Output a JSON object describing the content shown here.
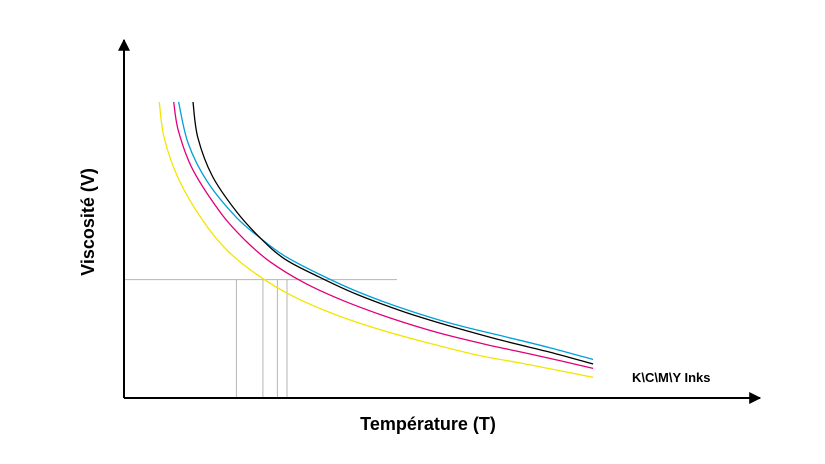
{
  "chart_data": {
    "type": "line",
    "xlabel": "Température (T)",
    "ylabel": "Viscosité (V)",
    "series_label": "K\\C\\M\\Y Inks",
    "grid": false,
    "xlim": [
      0,
      100
    ],
    "ylim": [
      0,
      100
    ],
    "reference_level": 40,
    "series": [
      {
        "color": "#00a0d8",
        "points": [
          [
            8,
            100
          ],
          [
            10,
            86
          ],
          [
            14,
            73
          ],
          [
            20,
            61
          ],
          [
            25,
            54
          ],
          [
            30,
            48
          ],
          [
            37,
            42
          ],
          [
            45,
            36
          ],
          [
            55,
            30
          ],
          [
            65,
            25
          ],
          [
            75,
            21
          ],
          [
            85,
            17
          ],
          [
            94,
            13
          ]
        ]
      },
      {
        "color": "#000000",
        "points": [
          [
            11,
            100
          ],
          [
            12,
            88
          ],
          [
            15,
            75
          ],
          [
            20,
            63
          ],
          [
            25,
            54
          ],
          [
            30,
            47
          ],
          [
            37,
            41
          ],
          [
            45,
            35
          ],
          [
            55,
            29
          ],
          [
            65,
            24
          ],
          [
            75,
            19.5
          ],
          [
            85,
            15.5
          ],
          [
            94,
            11.5
          ]
        ]
      },
      {
        "color": "#e0007a",
        "points": [
          [
            7,
            100
          ],
          [
            8,
            90
          ],
          [
            11,
            77
          ],
          [
            17,
            62
          ],
          [
            22,
            53
          ],
          [
            27,
            46
          ],
          [
            34,
            39
          ],
          [
            42,
            33
          ],
          [
            52,
            27
          ],
          [
            62,
            22
          ],
          [
            72,
            18
          ],
          [
            82,
            14.5
          ],
          [
            94,
            10
          ]
        ]
      },
      {
        "color": "#f2e600",
        "points": [
          [
            4,
            100
          ],
          [
            5,
            88
          ],
          [
            8,
            74
          ],
          [
            13,
            60
          ],
          [
            18,
            50
          ],
          [
            24,
            42
          ],
          [
            31,
            35
          ],
          [
            40,
            28.5
          ],
          [
            50,
            23
          ],
          [
            60,
            18.5
          ],
          [
            70,
            14.5
          ],
          [
            80,
            11.5
          ],
          [
            94,
            7
          ]
        ]
      }
    ],
    "drop_lines_x": [
      20,
      25.5,
      28.5,
      30.5
    ]
  }
}
